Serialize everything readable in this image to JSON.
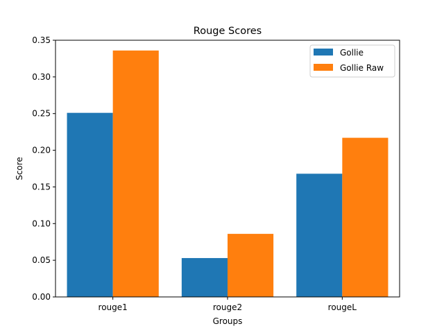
{
  "chart_data": {
    "type": "bar",
    "title": "Rouge Scores",
    "xlabel": "Groups",
    "ylabel": "Score",
    "categories": [
      "rouge1",
      "rouge2",
      "rougeL"
    ],
    "series": [
      {
        "name": "Gollie",
        "color": "#1f77b4",
        "values": [
          0.251,
          0.053,
          0.168
        ]
      },
      {
        "name": "Gollie Raw",
        "color": "#ff7f0e",
        "values": [
          0.336,
          0.086,
          0.217
        ]
      }
    ],
    "ylim": [
      0,
      0.35
    ],
    "yticks": [
      "0.00",
      "0.05",
      "0.10",
      "0.15",
      "0.20",
      "0.25",
      "0.30",
      "0.35"
    ],
    "grid": false,
    "legend_position": "top-right"
  }
}
